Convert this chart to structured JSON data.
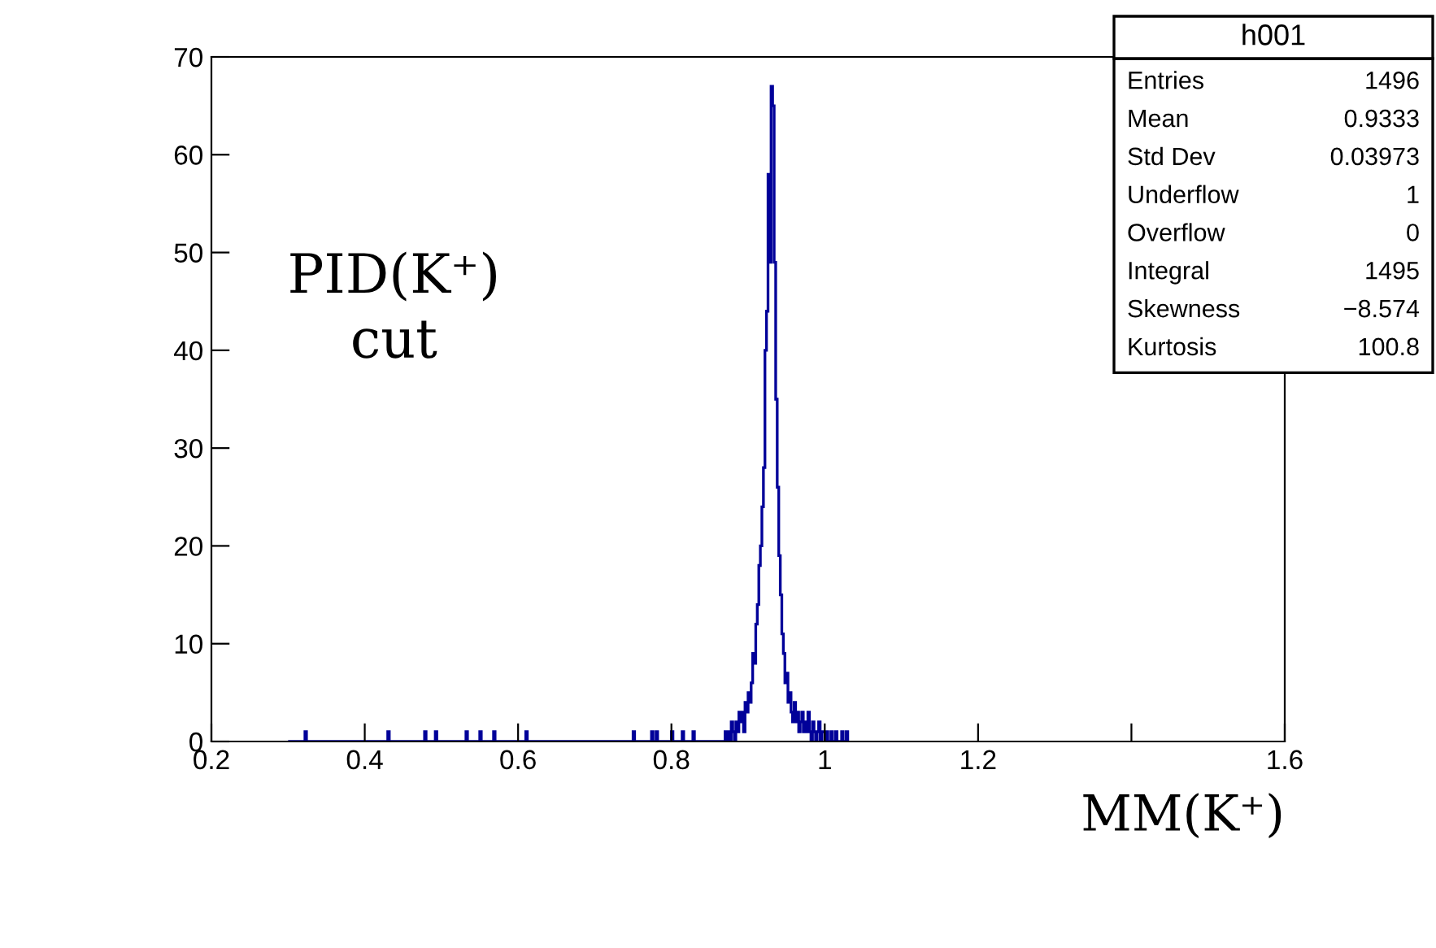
{
  "chart_data": {
    "type": "histogram",
    "xlabel": "MM(K⁺)",
    "bins": [
      0.3,
      0.322,
      0.324,
      0.43,
      0.432,
      0.478,
      0.48,
      0.492,
      0.494,
      0.532,
      0.534,
      0.55,
      0.552,
      0.568,
      0.57,
      0.61,
      0.612,
      0.75,
      0.752,
      0.774,
      0.776,
      0.78,
      0.782,
      0.8,
      0.802,
      0.814,
      0.816,
      0.828,
      0.83,
      0.87,
      0.872,
      0.874,
      0.876,
      0.878,
      0.88,
      0.882,
      0.884,
      0.886,
      0.888,
      0.89,
      0.892,
      0.894,
      0.896,
      0.898,
      0.9,
      0.902,
      0.904,
      0.906,
      0.908,
      0.91,
      0.912,
      0.914,
      0.916,
      0.918,
      0.92,
      0.922,
      0.924,
      0.926,
      0.928,
      0.93,
      0.932,
      0.934,
      0.936,
      0.938,
      0.94,
      0.942,
      0.944,
      0.946,
      0.948,
      0.95,
      0.952,
      0.954,
      0.956,
      0.958,
      0.96,
      0.962,
      0.964,
      0.966,
      0.968,
      0.97,
      0.972,
      0.974,
      0.976,
      0.978,
      0.98,
      0.982,
      0.984,
      0.986,
      0.988,
      0.99,
      0.992,
      0.994,
      0.996,
      0.998,
      1.0,
      1.002,
      1.004,
      1.006,
      1.008,
      1.01,
      1.012,
      1.014,
      1.016,
      1.018,
      1.02,
      1.022,
      1.024,
      1.026,
      1.028,
      1.03
    ],
    "values": [
      0,
      1,
      0,
      1,
      0,
      1,
      0,
      1,
      0,
      1,
      0,
      1,
      0,
      1,
      0,
      1,
      0,
      1,
      0,
      1,
      0,
      1,
      0,
      1,
      0,
      1,
      0,
      1,
      0,
      1,
      0,
      1,
      0,
      2,
      1,
      0,
      2,
      1,
      3,
      2,
      3,
      1,
      4,
      3,
      5,
      4,
      6,
      9,
      8,
      12,
      14,
      18,
      20,
      24,
      28,
      40,
      44,
      58,
      49,
      67,
      65,
      49,
      35,
      26,
      19,
      15,
      11,
      9,
      6,
      7,
      4,
      5,
      3,
      2,
      4,
      2,
      3,
      1,
      2,
      3,
      1,
      2,
      1,
      3,
      1,
      0,
      2,
      1,
      0,
      1,
      2,
      0,
      1,
      1,
      0,
      1,
      0,
      0,
      1,
      0,
      0,
      1,
      0,
      0,
      0,
      1,
      0,
      0,
      1
    ],
    "color": "#000099",
    "xlim": [
      0.2,
      1.6
    ],
    "ylim": [
      0,
      70
    ],
    "xticks": [
      {
        "value": 0.2,
        "label": "0.2"
      },
      {
        "value": 0.4,
        "label": "0.4"
      },
      {
        "value": 0.6,
        "label": "0.6"
      },
      {
        "value": 0.8,
        "label": "0.8"
      },
      1,
      {
        "value": 1.2,
        "label": "1.2"
      },
      {
        "value": 1.4,
        "label": null
      },
      {
        "value": 1.6,
        "label": "1.6"
      }
    ],
    "yticks": [
      0,
      10,
      20,
      30,
      40,
      50,
      60,
      70
    ],
    "grid": false,
    "legend": false,
    "annotations": [
      "h001",
      "Entries 1496",
      "Mean 0.9333",
      "Std Dev 0.03973",
      "Underflow 1",
      "Overflow 0",
      "Integral 1495",
      "Skewness −8.574",
      "Kurtosis 100.8",
      "PID(K⁺)\ncut"
    ]
  }
}
